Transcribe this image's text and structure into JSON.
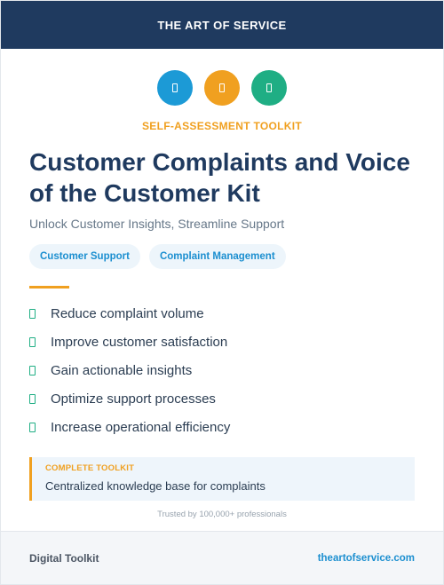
{
  "header": {
    "brand": "THE ART OF SERVICE"
  },
  "icons": [
    {
      "name": "book-icon",
      "color": "#1c9ad6"
    },
    {
      "name": "clipboard-icon",
      "color": "#f0a020"
    },
    {
      "name": "check-icon",
      "color": "#1fae84"
    }
  ],
  "kicker": "SELF-ASSESSMENT TOOLKIT",
  "title": "Customer Complaints and Voice of the Customer Kit",
  "subtitle": "Unlock Customer Insights, Streamline Support",
  "tags": [
    "Customer Support",
    "Complaint Management"
  ],
  "benefits": [
    "Reduce complaint volume",
    "Improve customer satisfaction",
    "Gain actionable insights",
    "Optimize support processes",
    "Increase operational efficiency"
  ],
  "callout": {
    "kicker": "COMPLETE TOOLKIT",
    "text": "Centralized knowledge base for complaints"
  },
  "trusted": "Trusted by 100,000+ professionals",
  "footer": {
    "left": "Digital Toolkit",
    "right": "theartofservice.com"
  },
  "colors": {
    "navy": "#1f3a5f",
    "orange": "#f0a020",
    "blue": "#1c9ad6",
    "green": "#1fae84"
  }
}
